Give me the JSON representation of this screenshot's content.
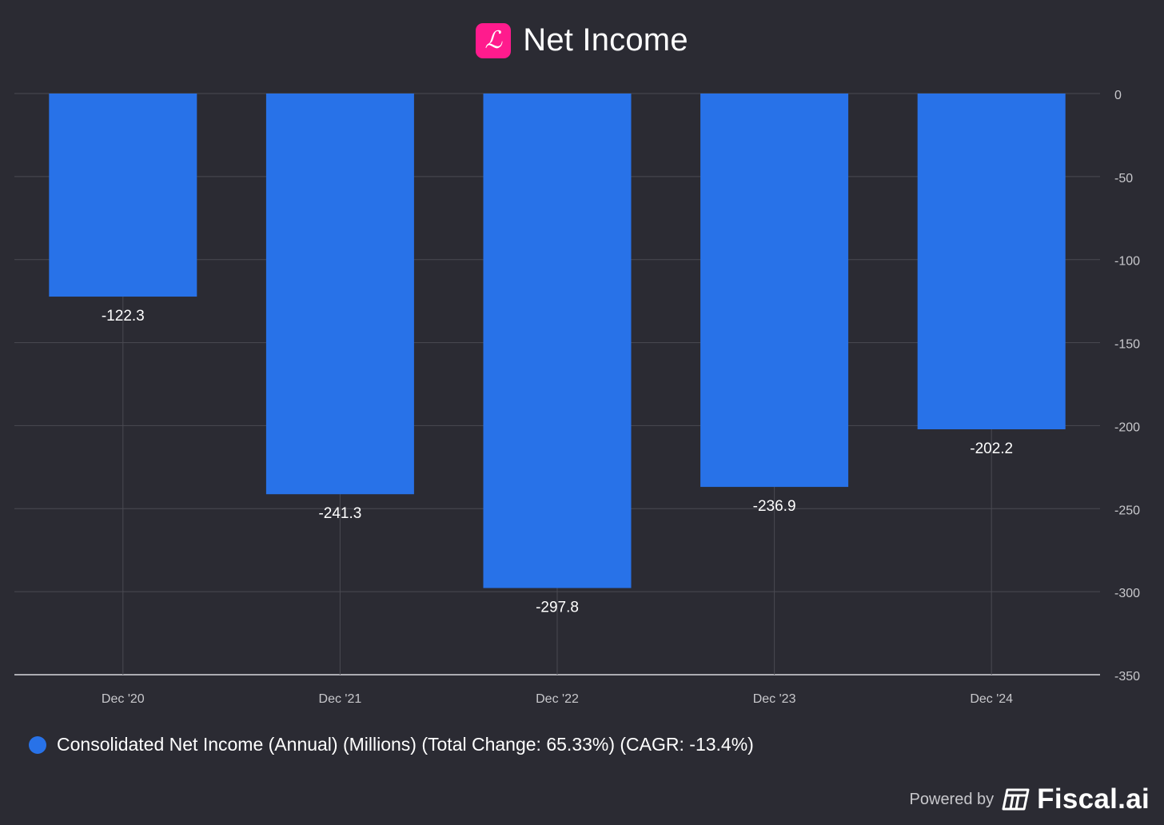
{
  "header": {
    "logo_letter": "ℒ",
    "title": "Net Income"
  },
  "chart_data": {
    "type": "bar",
    "title": "Net Income",
    "categories": [
      "Dec '20",
      "Dec '21",
      "Dec '22",
      "Dec '23",
      "Dec '24"
    ],
    "series": [
      {
        "name": "Consolidated Net Income (Annual) (Millions) (Total Change: 65.33%) (CAGR: -13.4%)",
        "values": [
          -122.3,
          -241.3,
          -297.8,
          -236.9,
          -202.2
        ],
        "labels": [
          "-122.3",
          "-241.3",
          "-297.8",
          "-236.9",
          "-202.2"
        ]
      }
    ],
    "yticks": [
      0,
      -50,
      -100,
      -150,
      -200,
      -250,
      -300,
      -350
    ],
    "ylim": [
      -350,
      0
    ],
    "xlabel": "",
    "ylabel": "",
    "grid": true,
    "legend_position": "bottom-left"
  },
  "legend": {
    "label": "Consolidated Net Income (Annual) (Millions) (Total Change: 65.33%) (CAGR: -13.4%)"
  },
  "footer": {
    "powered_by": "Powered by",
    "brand": "Fiscal.ai"
  },
  "colors": {
    "background": "#2b2b33",
    "bar": "#2872e8",
    "grid": "#4a4a52",
    "axis": "#c8c8cc",
    "logo": "#ff1b8d"
  }
}
